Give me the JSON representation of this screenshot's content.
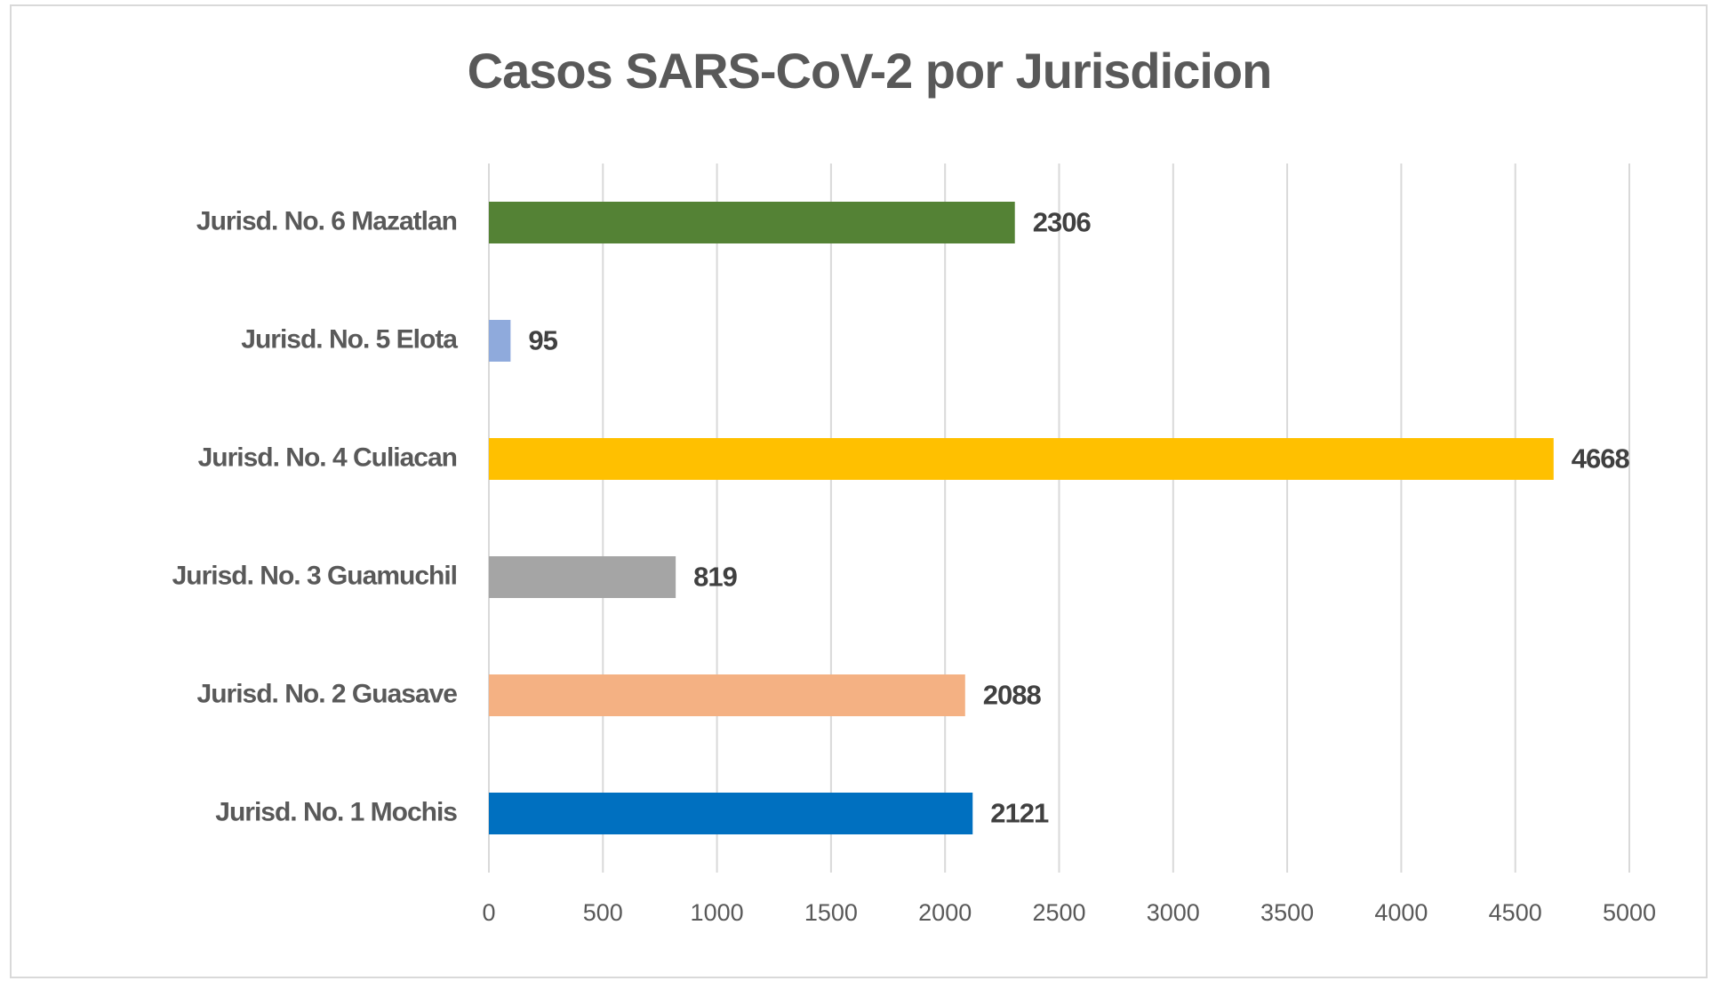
{
  "chart_data": {
    "type": "bar",
    "orientation": "horizontal",
    "title": "Casos SARS-CoV-2 por Jurisdicion",
    "categories": [
      "Jurisd. No. 6 Mazatlan",
      "Jurisd. No. 5 Elota",
      "Jurisd. No. 4 Culiacan",
      "Jurisd. No. 3 Guamuchil",
      "Jurisd. No. 2 Guasave",
      "Jurisd. No. 1 Mochis"
    ],
    "values": [
      2306,
      95,
      4668,
      819,
      2088,
      2121
    ],
    "colors": [
      "#548235",
      "#8faadc",
      "#ffc000",
      "#a5a5a5",
      "#f4b183",
      "#0070c0"
    ],
    "xlim": [
      0,
      5000
    ],
    "xticks": [
      0,
      500,
      1000,
      1500,
      2000,
      2500,
      3000,
      3500,
      4000,
      4500,
      5000
    ],
    "grid": true
  }
}
